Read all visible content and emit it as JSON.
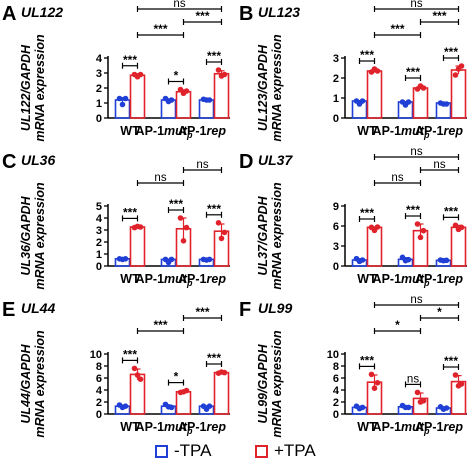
{
  "colors": {
    "minus": "#1f3fd6",
    "plus": "#e0222b"
  },
  "categories": [
    "WT",
    "AP-1",
    "AP-1"
  ],
  "category_suffix": [
    null,
    {
      "text": "mut",
      "sub": "p"
    },
    {
      "text": "rep",
      "sub": ""
    }
  ],
  "legend": {
    "minus": "-TPA",
    "plus": "+TPA"
  },
  "chart_data": [
    {
      "type": "bar",
      "letter": "A",
      "gene": "UL122",
      "ylabel_line1": "UL122/GAPDH",
      "ylabel_line2": "mRNA expression",
      "ylim": [
        0,
        4
      ],
      "yticks": [
        0,
        1,
        2,
        3,
        4
      ],
      "series": [
        {
          "name": "-TPA",
          "values": [
            1.2,
            1.2,
            1.2
          ],
          "points": [
            [
              1.3,
              0.9,
              1.3
            ],
            [
              1.3,
              1.1,
              1.2
            ],
            [
              1.25,
              1.2,
              1.2
            ]
          ],
          "err": [
            0.15,
            0.08,
            0.03
          ]
        },
        {
          "name": "+TPA",
          "values": [
            2.85,
            1.75,
            2.95
          ],
          "points": [
            [
              2.9,
              2.75,
              2.9
            ],
            [
              1.9,
              1.65,
              1.8
            ],
            [
              3.2,
              2.8,
              2.9
            ]
          ],
          "err": [
            0.1,
            0.12,
            0.2
          ]
        }
      ],
      "sig": [
        {
          "from": [
            0,
            0
          ],
          "to": [
            0,
            1
          ],
          "label": "***",
          "level": 1
        },
        {
          "from": [
            1,
            0
          ],
          "to": [
            1,
            1
          ],
          "label": "*",
          "level": 1
        },
        {
          "from": [
            2,
            0
          ],
          "to": [
            2,
            1
          ],
          "label": "***",
          "level": 1
        },
        {
          "from": [
            0,
            1
          ],
          "to": [
            1,
            1
          ],
          "label": "***",
          "level": 2
        },
        {
          "from": [
            1,
            1
          ],
          "to": [
            2,
            1
          ],
          "label": "***",
          "level": 3
        },
        {
          "from": [
            0,
            1
          ],
          "to": [
            2,
            1
          ],
          "label": "ns",
          "level": 4
        }
      ]
    },
    {
      "type": "bar",
      "letter": "B",
      "gene": "UL123",
      "ylabel_line1": "UL123/GAPDH",
      "ylabel_line2": "mRNA expression",
      "ylim": [
        0,
        3
      ],
      "yticks": [
        0,
        1,
        2,
        3
      ],
      "series": [
        {
          "name": "-TPA",
          "values": [
            0.85,
            0.8,
            0.75
          ],
          "points": [
            [
              0.85,
              0.85,
              0.85
            ],
            [
              0.8,
              0.8,
              0.8
            ],
            [
              0.75,
              0.7,
              0.7
            ]
          ],
          "err": [
            0.02,
            0.02,
            0.03
          ]
        },
        {
          "name": "+TPA",
          "values": [
            2.35,
            1.5,
            2.4
          ],
          "points": [
            [
              2.3,
              2.45,
              2.35
            ],
            [
              1.45,
              1.6,
              1.5
            ],
            [
              2.15,
              2.45,
              2.6
            ]
          ],
          "err": [
            0.08,
            0.06,
            0.2
          ]
        }
      ],
      "sig": [
        {
          "from": [
            0,
            0
          ],
          "to": [
            0,
            1
          ],
          "label": "***",
          "level": 1
        },
        {
          "from": [
            1,
            0
          ],
          "to": [
            1,
            1
          ],
          "label": "***",
          "level": 1
        },
        {
          "from": [
            2,
            0
          ],
          "to": [
            2,
            1
          ],
          "label": "***",
          "level": 1
        },
        {
          "from": [
            0,
            1
          ],
          "to": [
            1,
            1
          ],
          "label": "***",
          "level": 2
        },
        {
          "from": [
            1,
            1
          ],
          "to": [
            2,
            1
          ],
          "label": "***",
          "level": 3
        },
        {
          "from": [
            0,
            1
          ],
          "to": [
            2,
            1
          ],
          "label": "ns",
          "level": 4
        }
      ]
    },
    {
      "type": "bar",
      "letter": "C",
      "gene": "UL36",
      "ylabel_line1": "UL36/GAPDH",
      "ylabel_line2": "mRNA expression",
      "ylim": [
        0,
        5
      ],
      "yticks": [
        0,
        1,
        2,
        3,
        4,
        5
      ],
      "series": [
        {
          "name": "-TPA",
          "values": [
            0.6,
            0.55,
            0.55
          ],
          "points": [
            [
              0.6,
              0.55,
              0.6
            ],
            [
              0.55,
              0.55,
              0.55
            ],
            [
              0.55,
              0.5,
              0.55
            ]
          ],
          "err": [
            0.03,
            0.02,
            0.02
          ]
        },
        {
          "name": "+TPA",
          "values": [
            3.25,
            3.1,
            2.9
          ],
          "points": [
            [
              3.2,
              3.3,
              3.25
            ],
            [
              4.0,
              2.1,
              3.2
            ],
            [
              3.6,
              2.3,
              2.8
            ]
          ],
          "err": [
            0.05,
            0.9,
            0.6
          ]
        }
      ],
      "sig": [
        {
          "from": [
            0,
            0
          ],
          "to": [
            0,
            1
          ],
          "label": "***",
          "level": 1
        },
        {
          "from": [
            1,
            0
          ],
          "to": [
            1,
            1
          ],
          "label": "***",
          "level": 1
        },
        {
          "from": [
            2,
            0
          ],
          "to": [
            2,
            1
          ],
          "label": "***",
          "level": 1
        },
        {
          "from": [
            0,
            1
          ],
          "to": [
            1,
            1
          ],
          "label": "ns",
          "level": 2
        },
        {
          "from": [
            1,
            1
          ],
          "to": [
            2,
            1
          ],
          "label": "ns",
          "level": 3
        }
      ]
    },
    {
      "type": "bar",
      "letter": "D",
      "gene": "UL37",
      "ylabel_line1": "UL37/GAPDH",
      "ylabel_line2": "mRNA expression",
      "ylim": [
        0,
        9
      ],
      "yticks": [
        0,
        3,
        6,
        9
      ],
      "series": [
        {
          "name": "-TPA",
          "values": [
            0.9,
            1.0,
            0.85
          ],
          "points": [
            [
              1.1,
              0.7,
              0.9
            ],
            [
              1.3,
              0.8,
              0.95
            ],
            [
              0.9,
              0.8,
              0.85
            ]
          ],
          "err": [
            0.2,
            0.25,
            0.05
          ]
        },
        {
          "name": "+TPA",
          "values": [
            5.8,
            5.3,
            5.8
          ],
          "points": [
            [
              5.8,
              5.8,
              5.85
            ],
            [
              6.3,
              4.3,
              5.3
            ],
            [
              6.1,
              5.5,
              5.8
            ]
          ],
          "err": [
            0.05,
            1.0,
            0.3
          ]
        }
      ],
      "sig": [
        {
          "from": [
            0,
            0
          ],
          "to": [
            0,
            1
          ],
          "label": "***",
          "level": 1
        },
        {
          "from": [
            1,
            0
          ],
          "to": [
            1,
            1
          ],
          "label": "***",
          "level": 1
        },
        {
          "from": [
            2,
            0
          ],
          "to": [
            2,
            1
          ],
          "label": "***",
          "level": 1
        },
        {
          "from": [
            0,
            1
          ],
          "to": [
            1,
            1
          ],
          "label": "ns",
          "level": 2
        },
        {
          "from": [
            1,
            1
          ],
          "to": [
            2,
            1
          ],
          "label": "ns",
          "level": 3
        },
        {
          "from": [
            0,
            1
          ],
          "to": [
            2,
            1
          ],
          "label": "ns",
          "level": 4
        }
      ]
    },
    {
      "type": "bar",
      "letter": "E",
      "gene": "UL44",
      "ylabel_line1": "UL44/GAPDH",
      "ylabel_line2": "mRNA expression",
      "ylim": [
        0,
        10
      ],
      "yticks": [
        0,
        2,
        4,
        6,
        8,
        10
      ],
      "series": [
        {
          "name": "-TPA",
          "values": [
            1.3,
            1.3,
            1.3
          ],
          "points": [
            [
              1.5,
              1.1,
              1.3
            ],
            [
              1.6,
              1.2,
              1.1
            ],
            [
              1.3,
              1.3,
              1.3
            ]
          ],
          "err": [
            0.2,
            0.2,
            0.05
          ]
        },
        {
          "name": "+TPA",
          "values": [
            6.6,
            3.7,
            6.9
          ],
          "points": [
            [
              7.6,
              6.5,
              5.8
            ],
            [
              3.6,
              3.7,
              3.9
            ],
            [
              6.8,
              7.0,
              6.9
            ]
          ],
          "err": [
            0.9,
            0.15,
            0.1
          ]
        }
      ],
      "sig": [
        {
          "from": [
            0,
            0
          ],
          "to": [
            0,
            1
          ],
          "label": "***",
          "level": 1
        },
        {
          "from": [
            1,
            0
          ],
          "to": [
            1,
            1
          ],
          "label": "*",
          "level": 1
        },
        {
          "from": [
            2,
            0
          ],
          "to": [
            2,
            1
          ],
          "label": "***",
          "level": 1
        },
        {
          "from": [
            0,
            1
          ],
          "to": [
            1,
            1
          ],
          "label": "***",
          "level": 2
        },
        {
          "from": [
            1,
            1
          ],
          "to": [
            2,
            1
          ],
          "label": "***",
          "level": 3
        }
      ]
    },
    {
      "type": "bar",
      "letter": "F",
      "gene": "UL99",
      "ylabel_line1": "UL99/GAPDH",
      "ylabel_line2": "mRNA expression",
      "ylim": [
        0,
        10
      ],
      "yticks": [
        0,
        2,
        4,
        6,
        8,
        10
      ],
      "series": [
        {
          "name": "-TPA",
          "values": [
            1.1,
            1.2,
            1.0
          ],
          "points": [
            [
              1.3,
              0.9,
              1.1
            ],
            [
              1.4,
              1.1,
              1.1
            ],
            [
              1.2,
              0.8,
              1.0
            ]
          ],
          "err": [
            0.2,
            0.15,
            0.2
          ]
        },
        {
          "name": "+TPA",
          "values": [
            5.3,
            2.6,
            5.4
          ],
          "points": [
            [
              6.6,
              4.3,
              5.2
            ],
            [
              3.6,
              2.0,
              2.2
            ],
            [
              6.5,
              4.7,
              5.0
            ]
          ],
          "err": [
            1.2,
            0.9,
            1.0
          ]
        }
      ],
      "sig": [
        {
          "from": [
            0,
            0
          ],
          "to": [
            0,
            1
          ],
          "label": "***",
          "level": 1
        },
        {
          "from": [
            1,
            0
          ],
          "to": [
            1,
            1
          ],
          "label": "ns",
          "level": 1
        },
        {
          "from": [
            2,
            0
          ],
          "to": [
            2,
            1
          ],
          "label": "***",
          "level": 1
        },
        {
          "from": [
            0,
            1
          ],
          "to": [
            1,
            1
          ],
          "label": "*",
          "level": 2
        },
        {
          "from": [
            1,
            1
          ],
          "to": [
            2,
            1
          ],
          "label": "*",
          "level": 3
        },
        {
          "from": [
            0,
            1
          ],
          "to": [
            2,
            1
          ],
          "label": "ns",
          "level": 4
        }
      ]
    }
  ]
}
